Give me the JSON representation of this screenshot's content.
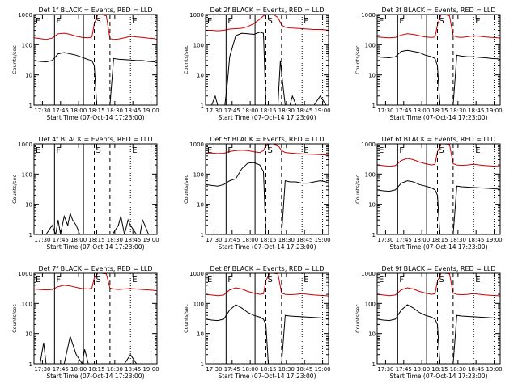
{
  "page": {
    "background": "#ffffff"
  },
  "colors": {
    "events": "#000000",
    "lld": "#cc0000",
    "axes": "#000000"
  },
  "shared": {
    "xlabel": "Start Time (07-Oct-14 17:23:00)",
    "ylabel": "Counts/sec",
    "x_ticks": [
      "17:30",
      "17:45",
      "18:00",
      "18:15",
      "18:30",
      "18:45",
      "19:00"
    ],
    "y_ticks": [
      "1",
      "10",
      "100",
      "1000"
    ],
    "y_scale": "log",
    "ylim": [
      1,
      1000
    ],
    "xlim_minutes_after_17_23": [
      0,
      102
    ],
    "event_markers": [
      {
        "label": "E",
        "t_min": 0,
        "style": "solid"
      },
      {
        "label": "F",
        "t_min": 17,
        "style": "solid"
      },
      {
        "label": "",
        "t_min": 41,
        "style": "solid"
      },
      {
        "label": "S",
        "t_min": 50,
        "style": "dashed"
      },
      {
        "label": "",
        "t_min": 63,
        "style": "dashed"
      },
      {
        "label": "E",
        "t_min": 80,
        "style": "dotted"
      },
      {
        "label": "",
        "t_min": 97,
        "style": "dotted"
      }
    ]
  },
  "chart_data": [
    {
      "type": "line",
      "title": "Det 1f BLACK = Events, RED = LLD",
      "yscale": "log",
      "series": [
        {
          "color": "#cc0000",
          "x": [
            0,
            5,
            10,
            15,
            20,
            25,
            30,
            35,
            40,
            45,
            48,
            50,
            53,
            56,
            60,
            63,
            66,
            70,
            75,
            80,
            85,
            90,
            95,
            100,
            102
          ],
          "y": [
            170,
            160,
            150,
            165,
            230,
            240,
            220,
            190,
            175,
            170,
            180,
            500,
            1000,
            1000,
            900,
            160,
            150,
            155,
            170,
            190,
            180,
            175,
            165,
            160,
            150
          ]
        },
        {
          "color": "#000000",
          "x": [
            0,
            5,
            10,
            15,
            20,
            25,
            30,
            35,
            40,
            45,
            48,
            50,
            52,
            56,
            60,
            63,
            66,
            70,
            75,
            80,
            85,
            90,
            95,
            100,
            102
          ],
          "y": [
            30,
            28,
            27,
            30,
            50,
            55,
            50,
            45,
            38,
            32,
            30,
            20,
            0,
            0,
            0,
            0,
            35,
            33,
            32,
            31,
            30,
            30,
            28,
            27,
            25
          ]
        }
      ]
    },
    {
      "type": "line",
      "title": "Det 2f BLACK = Events, RED = LLD",
      "yscale": "log",
      "series": [
        {
          "color": "#cc0000",
          "x": [
            0,
            5,
            10,
            15,
            20,
            25,
            30,
            35,
            40,
            45,
            48,
            50,
            53,
            56,
            60,
            63,
            66,
            70,
            75,
            80,
            85,
            90,
            95,
            100,
            102
          ],
          "y": [
            300,
            300,
            290,
            300,
            330,
            340,
            350,
            400,
            500,
            700,
            900,
            1000,
            1000,
            1000,
            800,
            450,
            380,
            360,
            350,
            340,
            330,
            320,
            320,
            310,
            300
          ]
        },
        {
          "color": "#000000",
          "x": [
            0,
            5,
            8,
            10,
            13,
            16,
            18,
            20,
            25,
            30,
            35,
            40,
            45,
            48,
            50,
            53,
            56,
            60,
            62,
            64,
            66,
            70,
            72,
            75,
            80,
            85,
            90,
            95,
            100,
            102
          ],
          "y": [
            0,
            0,
            2,
            0,
            0,
            0,
            5,
            40,
            200,
            240,
            230,
            220,
            260,
            240,
            0,
            0,
            0,
            0,
            30,
            5,
            1,
            0,
            2,
            0,
            0,
            0,
            1,
            2,
            1,
            0
          ]
        }
      ]
    },
    {
      "type": "line",
      "title": "Det 3f BLACK = Events, RED = LLD",
      "yscale": "log",
      "series": [
        {
          "color": "#cc0000",
          "x": [
            0,
            5,
            10,
            15,
            20,
            25,
            30,
            35,
            40,
            45,
            48,
            50,
            53,
            56,
            60,
            63,
            66,
            70,
            75,
            80,
            85,
            90,
            95,
            100,
            102
          ],
          "y": [
            180,
            175,
            170,
            175,
            210,
            230,
            220,
            200,
            180,
            175,
            180,
            450,
            1000,
            1000,
            900,
            200,
            180,
            175,
            185,
            200,
            190,
            180,
            175,
            170,
            165
          ]
        },
        {
          "color": "#000000",
          "x": [
            0,
            5,
            10,
            15,
            20,
            25,
            30,
            35,
            40,
            45,
            48,
            50,
            52,
            56,
            60,
            63,
            66,
            70,
            75,
            80,
            85,
            90,
            95,
            100,
            102
          ],
          "y": [
            40,
            38,
            37,
            40,
            60,
            65,
            60,
            55,
            45,
            40,
            35,
            20,
            0,
            0,
            0,
            0,
            45,
            42,
            40,
            40,
            38,
            37,
            35,
            34,
            32
          ]
        }
      ]
    },
    {
      "type": "line",
      "title": "Det 4f BLACK = Events, RED = LLD",
      "yscale": "log",
      "series": [
        {
          "color": "#000000",
          "x": [
            0,
            10,
            15,
            18,
            20,
            22,
            25,
            28,
            30,
            32,
            35,
            38,
            40,
            45,
            50,
            55,
            60,
            65,
            70,
            72,
            75,
            78,
            80,
            85,
            88,
            90,
            92,
            95,
            100,
            102
          ],
          "y": [
            0,
            0,
            2,
            1,
            3,
            1,
            4,
            2,
            5,
            3,
            2,
            1,
            0,
            0,
            0,
            0,
            0,
            0,
            2,
            4,
            1,
            3,
            2,
            0,
            1,
            3,
            2,
            1,
            0,
            0
          ]
        }
      ]
    },
    {
      "type": "line",
      "title": "Det 5f BLACK = Events, RED = LLD",
      "yscale": "log",
      "series": [
        {
          "color": "#cc0000",
          "x": [
            0,
            5,
            10,
            15,
            20,
            25,
            30,
            35,
            40,
            45,
            48,
            50,
            53,
            56,
            60,
            63,
            66,
            70,
            75,
            80,
            85,
            90,
            95,
            100,
            102
          ],
          "y": [
            500,
            500,
            480,
            490,
            560,
            600,
            620,
            600,
            550,
            520,
            600,
            900,
            1000,
            1000,
            900,
            600,
            520,
            500,
            480,
            470,
            460,
            450,
            440,
            430,
            420
          ]
        },
        {
          "color": "#000000",
          "x": [
            0,
            5,
            10,
            15,
            20,
            25,
            30,
            35,
            40,
            45,
            48,
            50,
            52,
            56,
            60,
            63,
            66,
            70,
            75,
            80,
            85,
            90,
            95,
            100,
            102
          ],
          "y": [
            45,
            42,
            40,
            45,
            60,
            70,
            150,
            230,
            240,
            200,
            120,
            0,
            0,
            0,
            0,
            0,
            60,
            55,
            55,
            50,
            50,
            55,
            60,
            55,
            50
          ]
        }
      ]
    },
    {
      "type": "line",
      "title": "Det 6f BLACK = Events, RED = LLD",
      "yscale": "log",
      "series": [
        {
          "color": "#cc0000",
          "x": [
            0,
            5,
            10,
            15,
            20,
            25,
            30,
            35,
            40,
            45,
            48,
            50,
            53,
            56,
            60,
            63,
            66,
            70,
            75,
            80,
            85,
            90,
            95,
            100,
            102
          ],
          "y": [
            200,
            190,
            180,
            190,
            280,
            330,
            300,
            250,
            220,
            200,
            210,
            550,
            1000,
            1000,
            950,
            220,
            200,
            195,
            200,
            210,
            200,
            190,
            185,
            180,
            175
          ]
        },
        {
          "color": "#000000",
          "x": [
            0,
            5,
            10,
            15,
            20,
            25,
            30,
            35,
            40,
            45,
            48,
            50,
            52,
            56,
            60,
            63,
            66,
            70,
            75,
            80,
            85,
            90,
            95,
            100,
            102
          ],
          "y": [
            30,
            28,
            27,
            30,
            50,
            60,
            55,
            45,
            40,
            35,
            30,
            20,
            0,
            0,
            0,
            0,
            40,
            38,
            37,
            36,
            35,
            34,
            33,
            32,
            30
          ]
        }
      ]
    },
    {
      "type": "line",
      "title": "Det 7f BLACK = Events, RED = LLD",
      "yscale": "log",
      "series": [
        {
          "color": "#cc0000",
          "x": [
            0,
            5,
            10,
            15,
            20,
            25,
            30,
            35,
            40,
            45,
            48,
            50,
            53,
            56,
            60,
            63,
            66,
            70,
            75,
            80,
            85,
            90,
            95,
            100,
            102
          ],
          "y": [
            300,
            290,
            280,
            290,
            360,
            400,
            380,
            340,
            310,
            300,
            320,
            700,
            1000,
            1000,
            950,
            320,
            300,
            290,
            300,
            310,
            300,
            290,
            280,
            270,
            260
          ]
        },
        {
          "color": "#000000",
          "x": [
            0,
            5,
            8,
            10,
            13,
            15,
            20,
            25,
            30,
            35,
            40,
            42,
            45,
            48,
            50,
            55,
            60,
            65,
            70,
            75,
            80,
            85,
            90,
            95,
            100,
            102
          ],
          "y": [
            0,
            0,
            5,
            0,
            0,
            0,
            0,
            0,
            8,
            2,
            0,
            3,
            0,
            0,
            0,
            0,
            0,
            0,
            0,
            0,
            2,
            0,
            0,
            0,
            0,
            0
          ]
        }
      ]
    },
    {
      "type": "line",
      "title": "Det 8f BLACK = Events, RED = LLD",
      "yscale": "log",
      "series": [
        {
          "color": "#cc0000",
          "x": [
            0,
            5,
            10,
            15,
            20,
            25,
            30,
            35,
            40,
            45,
            48,
            50,
            53,
            56,
            60,
            63,
            66,
            70,
            75,
            80,
            85,
            90,
            95,
            100,
            102
          ],
          "y": [
            200,
            190,
            180,
            190,
            280,
            330,
            300,
            250,
            220,
            200,
            210,
            550,
            1000,
            1000,
            950,
            220,
            200,
            195,
            200,
            210,
            200,
            190,
            185,
            180,
            175
          ]
        },
        {
          "color": "#000000",
          "x": [
            0,
            5,
            10,
            15,
            20,
            25,
            30,
            35,
            40,
            45,
            48,
            50,
            52,
            56,
            60,
            63,
            66,
            70,
            75,
            80,
            85,
            90,
            95,
            100,
            102
          ],
          "y": [
            30,
            28,
            27,
            30,
            60,
            90,
            70,
            50,
            40,
            35,
            30,
            20,
            0,
            0,
            0,
            0,
            40,
            38,
            37,
            36,
            35,
            34,
            33,
            32,
            30
          ]
        }
      ]
    },
    {
      "type": "line",
      "title": "Det 9f BLACK = Events, RED = LLD",
      "yscale": "log",
      "series": [
        {
          "color": "#cc0000",
          "x": [
            0,
            5,
            10,
            15,
            20,
            25,
            30,
            35,
            40,
            45,
            48,
            50,
            53,
            56,
            60,
            63,
            66,
            70,
            75,
            80,
            85,
            90,
            95,
            100,
            102
          ],
          "y": [
            200,
            190,
            180,
            190,
            280,
            330,
            300,
            250,
            220,
            200,
            210,
            550,
            1000,
            1000,
            950,
            220,
            200,
            195,
            200,
            210,
            200,
            190,
            185,
            180,
            175
          ]
        },
        {
          "color": "#000000",
          "x": [
            0,
            5,
            10,
            15,
            20,
            25,
            30,
            35,
            40,
            45,
            48,
            50,
            52,
            56,
            60,
            63,
            66,
            70,
            75,
            80,
            85,
            90,
            95,
            100,
            102
          ],
          "y": [
            30,
            28,
            27,
            30,
            60,
            90,
            70,
            50,
            40,
            35,
            30,
            20,
            0,
            0,
            0,
            0,
            40,
            38,
            37,
            36,
            35,
            34,
            33,
            32,
            30
          ]
        }
      ]
    }
  ]
}
